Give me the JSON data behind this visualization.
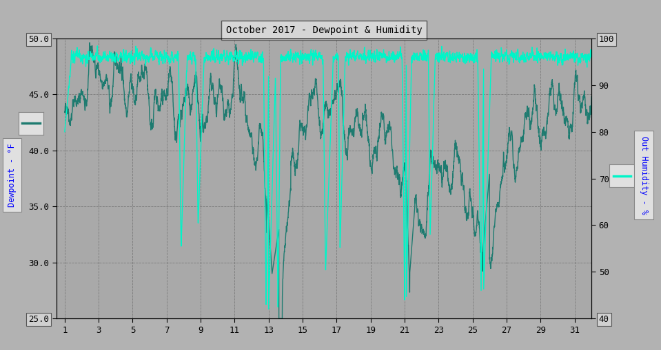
{
  "title": "October 2017 - Dewpoint & Humidity",
  "ylabel_left": "Dewpoint - °F",
  "ylabel_right": "Out Humidity - %",
  "ylim_left": [
    25.0,
    50.0
  ],
  "ylim_right": [
    40,
    100
  ],
  "yticks_left": [
    25.0,
    30.0,
    35.0,
    40.0,
    45.0,
    50.0
  ],
  "yticks_right": [
    40,
    50,
    60,
    70,
    80,
    90,
    100
  ],
  "xticks": [
    1,
    3,
    5,
    7,
    9,
    11,
    13,
    15,
    17,
    19,
    21,
    23,
    25,
    27,
    29,
    31
  ],
  "xlim": [
    0.5,
    32
  ],
  "bg_color": "#b2b2b2",
  "plot_bg_color": "#a9a9a9",
  "grid_color": "#757575",
  "dewpoint_color": "#1e7b70",
  "humidity_color": "#00f5c8",
  "dewpoint_lw": 1.0,
  "humidity_lw": 1.0,
  "title_box_color": "#d6d6d6",
  "label_box_color": "#e0e0e0",
  "tick_box_color": "#d0d0d0"
}
